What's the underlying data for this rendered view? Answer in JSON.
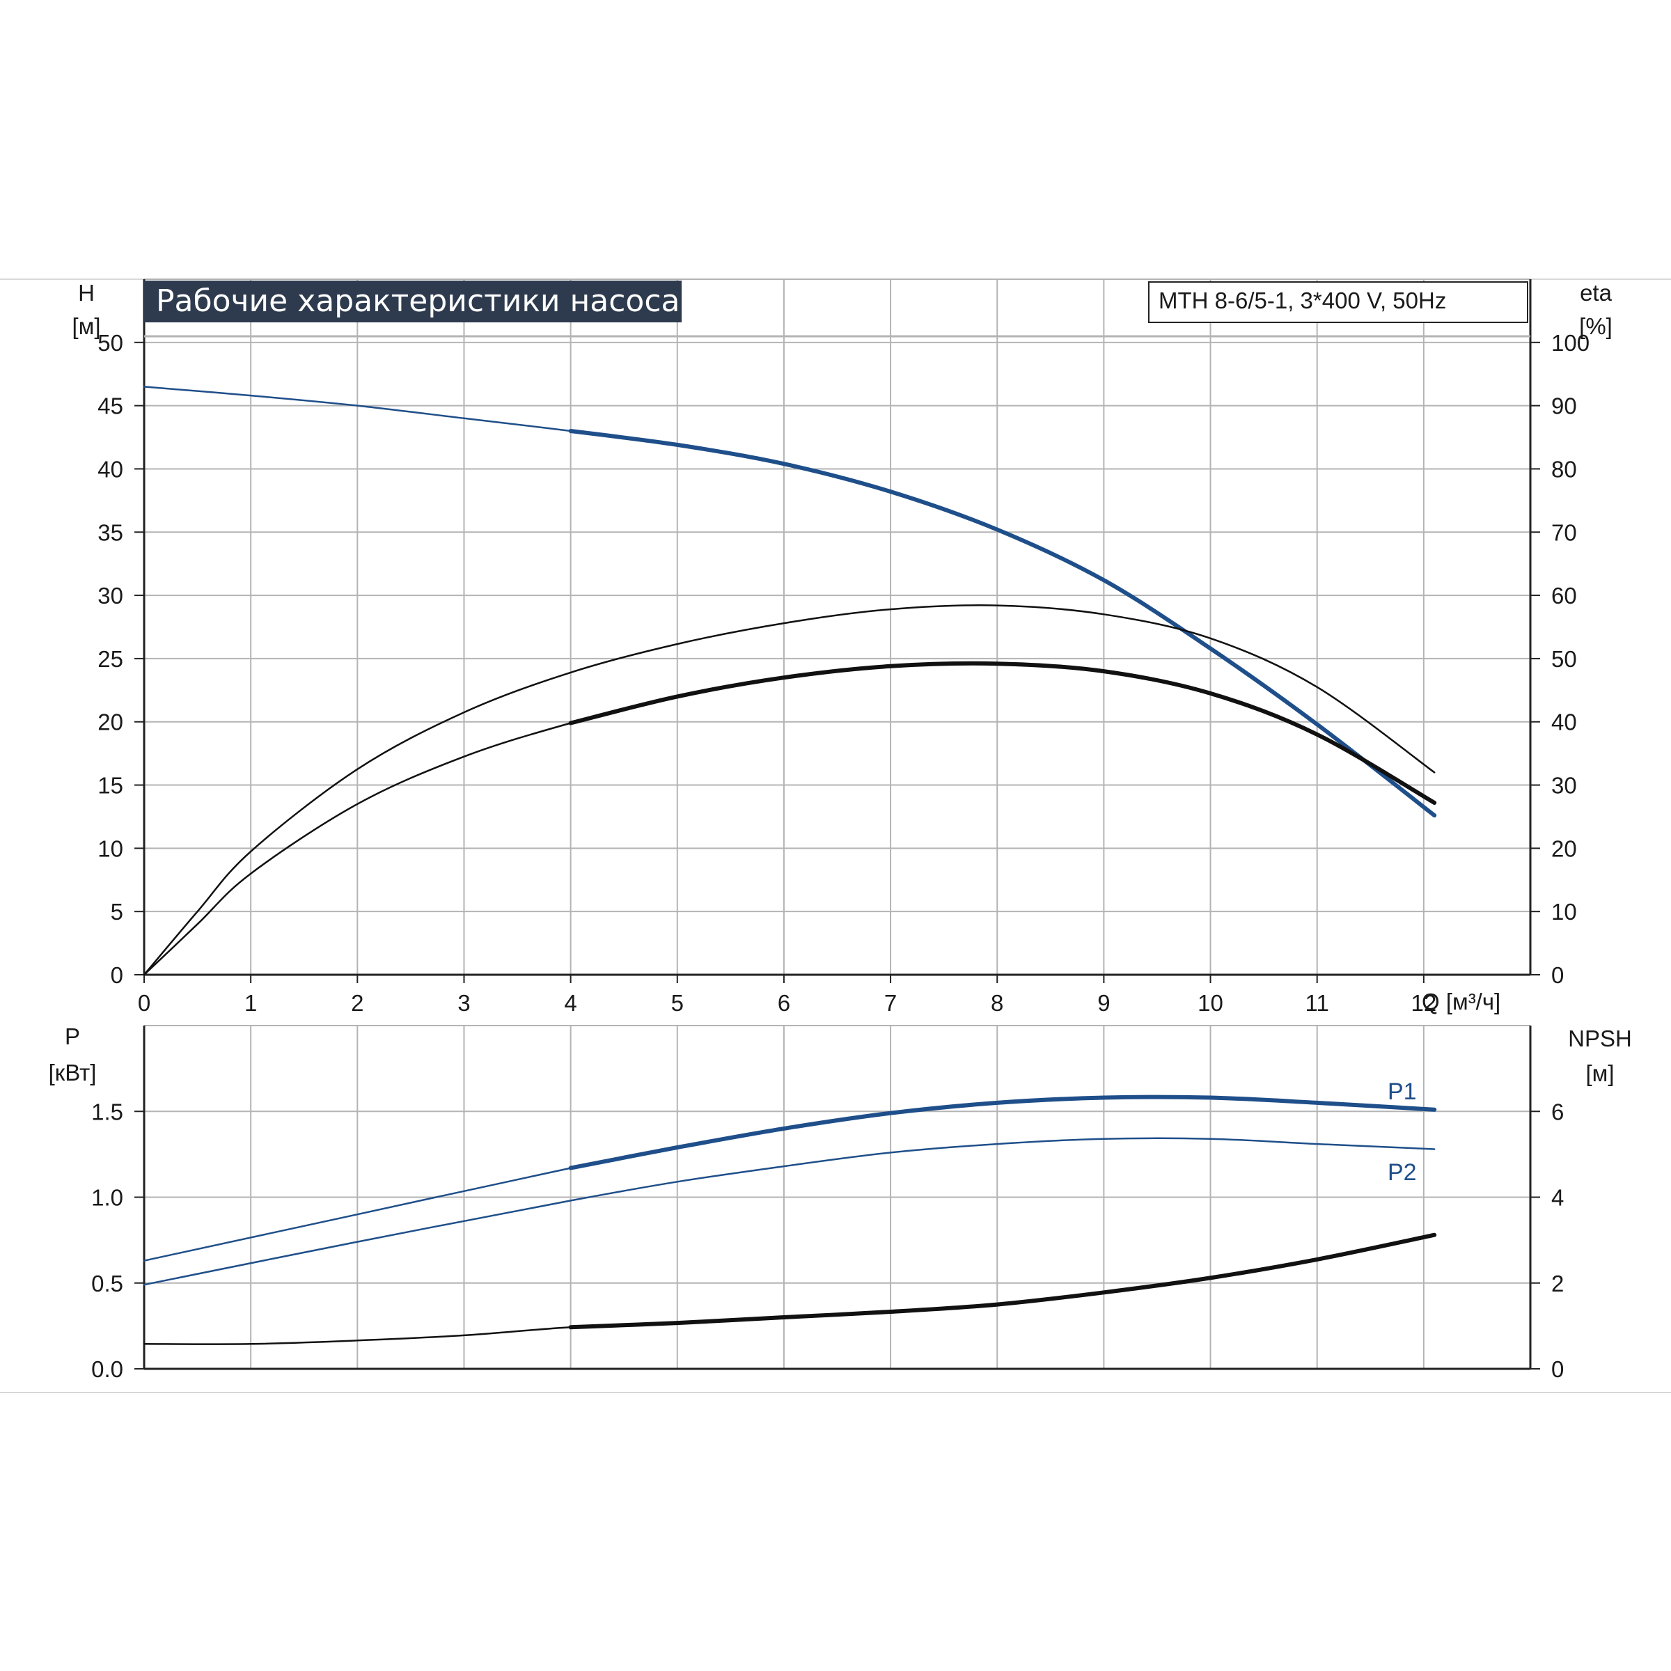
{
  "title": "Рабочие характеристики насоса",
  "model": "MTH 8-6/5-1, 3*400 V, 50Hz",
  "colors": {
    "blue": "#1f4f8a",
    "black": "#111111",
    "grid": "#b4b4b4",
    "title_bg": "#2e3b4e"
  },
  "chart_data": [
    {
      "type": "line",
      "name": "top",
      "x_axis": {
        "label": "Q [м³/ч]",
        "range": [
          0,
          13
        ],
        "ticks": [
          0,
          1,
          2,
          3,
          4,
          5,
          6,
          7,
          8,
          9,
          10,
          11,
          12
        ],
        "tick_labels": [
          "0",
          "1",
          "2",
          "3",
          "4",
          "5",
          "6",
          "7",
          "8",
          "9",
          "10",
          "11",
          "12"
        ]
      },
      "y_left": {
        "label_top": "H",
        "label_unit": "[м]",
        "range": [
          0,
          55
        ],
        "ticks": [
          0,
          5,
          10,
          15,
          20,
          25,
          30,
          35,
          40,
          45,
          50
        ],
        "tick_labels": [
          "0",
          "5",
          "10",
          "15",
          "20",
          "25",
          "30",
          "35",
          "40",
          "45",
          "50"
        ]
      },
      "y_right": {
        "label_top": "eta",
        "label_unit": "[%]",
        "range": [
          0,
          110
        ],
        "ticks": [
          0,
          10,
          20,
          30,
          40,
          50,
          60,
          70,
          80,
          90,
          100
        ],
        "tick_labels": [
          "0",
          "10",
          "20",
          "30",
          "40",
          "50",
          "60",
          "70",
          "80",
          "90",
          "100"
        ]
      },
      "grid": true,
      "series": [
        {
          "axis": "left",
          "color": "blue",
          "bold_from": 4,
          "x": [
            0,
            1,
            2,
            3,
            4,
            5,
            6,
            7,
            8,
            9,
            10,
            11,
            12.1
          ],
          "y": [
            46.5,
            45.8,
            45.0,
            44.0,
            43.0,
            41.9,
            40.4,
            38.2,
            35.2,
            31.2,
            25.8,
            19.8,
            12.6
          ]
        },
        {
          "axis": "right",
          "color": "black",
          "bold_from": 12.3,
          "x": [
            0,
            0.5,
            1,
            2,
            3,
            4,
            5,
            6,
            7,
            8,
            9,
            10,
            11,
            12.1
          ],
          "y": [
            0,
            10,
            19.5,
            32.5,
            41.5,
            47.8,
            52.3,
            55.6,
            57.8,
            58.4,
            57.0,
            53.2,
            45.5,
            32.0
          ]
        },
        {
          "axis": "right",
          "color": "black",
          "bold_from": 4,
          "x": [
            0,
            0.5,
            1,
            2,
            3,
            4,
            5,
            6,
            7,
            8,
            9,
            10,
            11,
            12.1
          ],
          "y": [
            0,
            8,
            16,
            27,
            34.5,
            39.8,
            44.0,
            47.0,
            48.8,
            49.2,
            48.0,
            44.5,
            38.0,
            27.2
          ]
        }
      ]
    },
    {
      "type": "line",
      "name": "bottom",
      "x_axis": {
        "range": [
          0,
          13
        ]
      },
      "y_left": {
        "label_top": "P",
        "label_unit": "[кВт]",
        "range": [
          0,
          2.0
        ],
        "ticks": [
          0,
          0.5,
          1.0,
          1.5
        ],
        "tick_labels": [
          "0.0",
          "0.5",
          "1.0",
          "1.5"
        ]
      },
      "y_right": {
        "label_top": "NPSH",
        "label_unit": "[м]",
        "range": [
          0,
          8
        ],
        "ticks": [
          0,
          2,
          4,
          6
        ],
        "tick_labels": [
          "0",
          "2",
          "4",
          "6"
        ]
      },
      "grid": true,
      "series": [
        {
          "name": "P1",
          "axis": "left",
          "color": "blue",
          "bold_from": 4,
          "x": [
            0,
            2,
            4,
            5,
            6,
            7,
            8,
            9,
            10,
            11,
            12.1
          ],
          "y": [
            0.63,
            0.9,
            1.17,
            1.29,
            1.4,
            1.49,
            1.55,
            1.58,
            1.58,
            1.55,
            1.51
          ]
        },
        {
          "name": "P2",
          "axis": "left",
          "color": "blue",
          "bold_from": 12.3,
          "x": [
            0,
            2,
            4,
            5,
            6,
            7,
            8,
            9,
            10,
            11,
            12.1
          ],
          "y": [
            0.49,
            0.74,
            0.98,
            1.09,
            1.18,
            1.26,
            1.31,
            1.34,
            1.34,
            1.31,
            1.28
          ]
        },
        {
          "axis": "right",
          "color": "black",
          "bold_from": 4,
          "x": [
            0,
            1,
            2,
            3,
            4,
            5,
            6,
            7,
            8,
            9,
            10,
            11,
            12.1
          ],
          "y": [
            0.58,
            0.58,
            0.66,
            0.78,
            0.97,
            1.07,
            1.2,
            1.33,
            1.5,
            1.78,
            2.12,
            2.55,
            3.12
          ]
        }
      ]
    }
  ]
}
